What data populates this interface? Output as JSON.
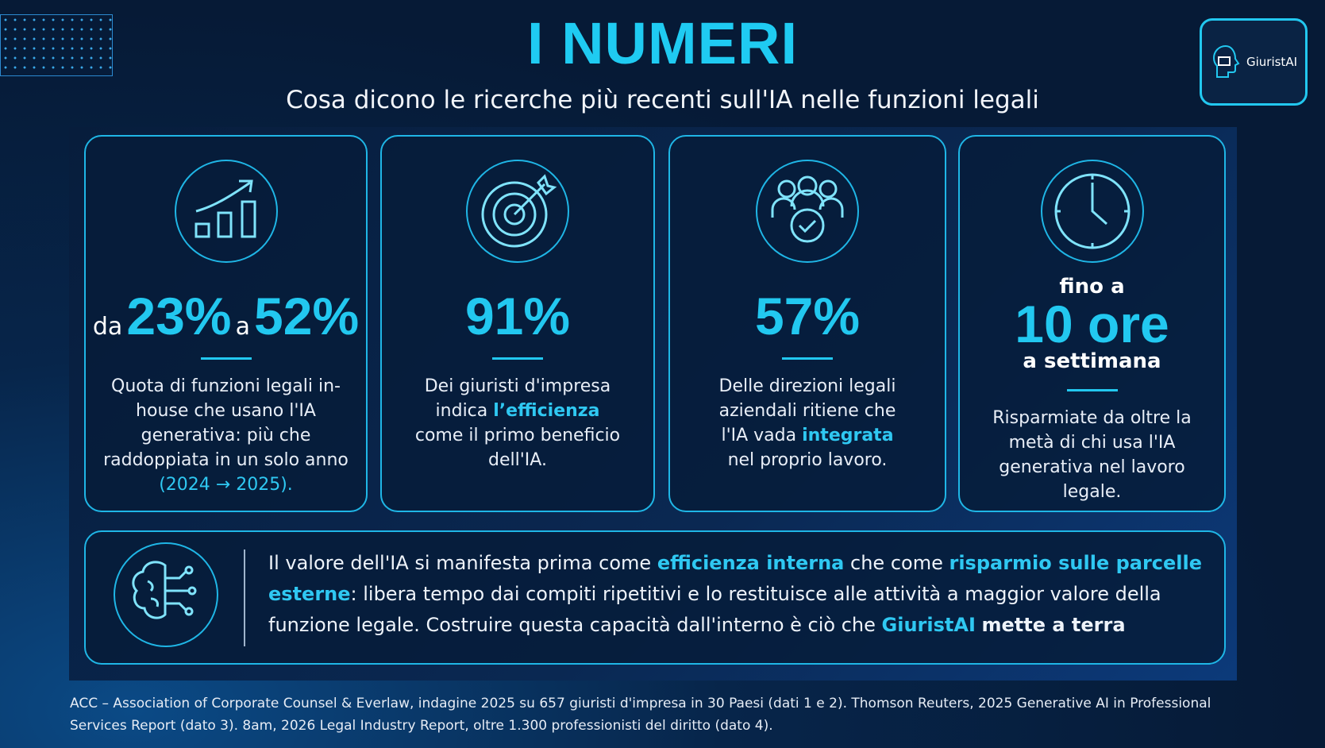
{
  "header": {
    "title": "I NUMERI",
    "subtitle": "Cosa dicono le ricerche più recenti sull'IA nelle funzioni legali",
    "logo": "GiuristAI"
  },
  "cards": [
    {
      "pre": "da",
      "number": "23%",
      "mid": "a",
      "number2": "52%",
      "text": "Quota di funzioni legali in-house che usano l'IA generativa: più che raddoppiata in un solo anno",
      "highlight": "(2024 → 2025)."
    },
    {
      "number": "91%",
      "text": "Dei giuristi d'impresa indica",
      "highlight": "l’efficienza",
      "after": "come il primo beneficio dell'IA."
    },
    {
      "number": "57%",
      "text": "Delle direzioni legali aziendali ritiene che l'IA vada",
      "highlight": "integrata",
      "after": "nel proprio lavoro."
    },
    {
      "pre": "fino a",
      "number": "10 ore",
      "post": "a settimana",
      "text": "Risparmiate da oltre la metà di chi usa l'IA generativa nel lavoro legale."
    }
  ],
  "summary": {
    "part1": "Il valore dell'IA si manifesta prima come",
    "hl1": "efficienza interna",
    "part2": "che come",
    "hl2": "risparmio sulle parcelle esterne",
    "part3": ": libera tempo dai compiti ripetitivi e lo restituisce alle attività a maggior valore della funzione legale. Costruire questa capacità dall'interno è ciò che",
    "hl3": "GiuristAI",
    "part4": "mette a terra"
  },
  "footer": "ACC – Association of Corporate Counsel & Everlaw, indagine 2025 su 657 giuristi d'impresa in 30 Paesi (dati 1 e 2). Thomson Reuters, 2025 Generative AI in Professional Services Report (dato 3). 8am, 2026 Legal Industry Report, oltre 1.300 professionisti del diritto (dato 4)."
}
